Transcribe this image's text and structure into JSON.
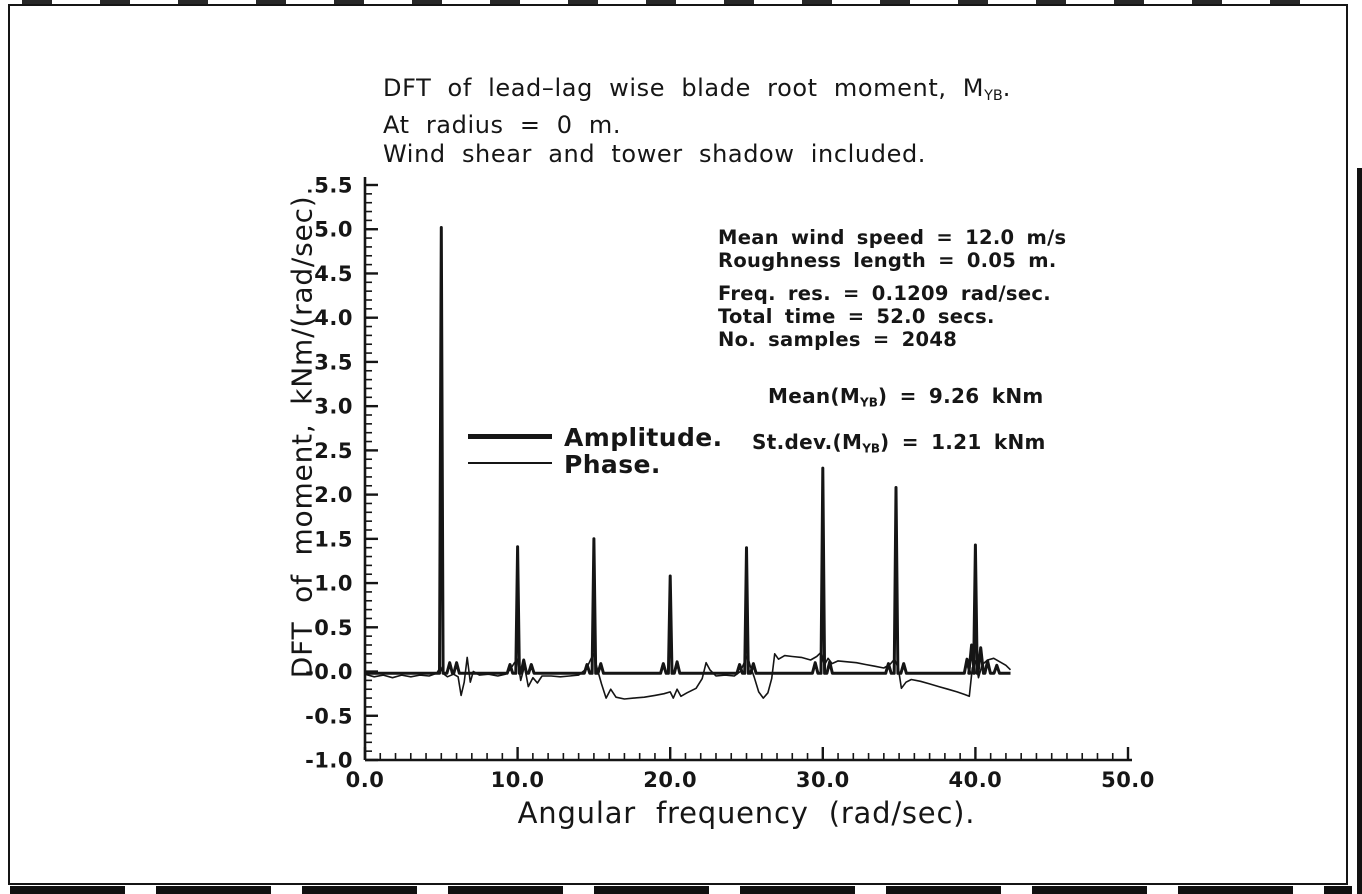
{
  "chart_data": {
    "type": "line",
    "title": {
      "line1_prefix": "DFT of lead–lag wise blade root moment, M",
      "line1_sub": "YB",
      "line1_suffix": ".",
      "line2": "At radius = 0 m.",
      "line3": "Wind shear and tower shadow included."
    },
    "xlabel": "Angular frequency (rad/sec).",
    "ylabel": "DFT of moment, kNm/(rad/sec).",
    "xlim": [
      0,
      50
    ],
    "ylim": [
      -1.0,
      5.5
    ],
    "x_major_ticks": [
      0,
      10,
      20,
      30,
      40,
      50
    ],
    "x_tick_labels": [
      "0.0",
      "10.0",
      "20.0",
      "30.0",
      "40.0",
      "50.0"
    ],
    "x_minor_step": 1.0,
    "y_major_ticks": [
      5.5,
      5.0,
      4.5,
      4.0,
      3.5,
      3.0,
      2.5,
      2.0,
      1.5,
      1.0,
      0.5,
      0.0,
      -0.5,
      -1.0
    ],
    "y_tick_labels": [
      "5.5",
      "5.0",
      "4.5",
      "4.0",
      "3.5",
      "3.0",
      "2.5",
      "2.0",
      "1.5",
      "1.0",
      "0.5",
      "-0.0",
      "-0.5",
      "-1.0"
    ],
    "y_minor_step": 0.1,
    "grid": false,
    "ink_color": "#151515",
    "legend": {
      "position": "inside-left",
      "amplitude_label": "Amplitude.",
      "phase_label": "Phase."
    },
    "info": {
      "line1": "Mean wind speed = 12.0 m/s",
      "line2": "Roughness length = 0.05 m.",
      "line3": "Freq. res. = 0.1209 rad/sec.",
      "line4": "Total time = 52.0 secs.",
      "line5": "No. samples = 2048"
    },
    "stats": {
      "mean_prefix": "Mean(M",
      "sub": "YB",
      "mean_suffix": ") = 9.26 kNm",
      "stdev_prefix": "St.dev.(M",
      "stdev_suffix": ") = 1.21 kNm"
    },
    "series": [
      {
        "name": "Amplitude.",
        "style": "thick",
        "baseline": -0.02,
        "x_end": 42.3,
        "peaks": [
          [
            5.0,
            5.02
          ],
          [
            10.0,
            1.41
          ],
          [
            15.0,
            1.5
          ],
          [
            20.0,
            1.08
          ],
          [
            25.0,
            1.4
          ],
          [
            30.0,
            2.3
          ],
          [
            34.8,
            2.08
          ],
          [
            40.0,
            1.43
          ]
        ],
        "minor_bumps": [
          [
            5.55,
            0.1
          ],
          [
            6.0,
            0.1
          ],
          [
            9.5,
            0.08
          ],
          [
            10.4,
            0.13
          ],
          [
            10.9,
            0.08
          ],
          [
            14.55,
            0.08
          ],
          [
            15.45,
            0.09
          ],
          [
            19.55,
            0.09
          ],
          [
            20.45,
            0.11
          ],
          [
            24.55,
            0.08
          ],
          [
            25.45,
            0.09
          ],
          [
            29.5,
            0.1
          ],
          [
            30.45,
            0.11
          ],
          [
            34.3,
            0.09
          ],
          [
            35.3,
            0.09
          ],
          [
            39.45,
            0.14
          ],
          [
            39.75,
            0.3
          ],
          [
            40.35,
            0.27
          ],
          [
            40.8,
            0.12
          ],
          [
            41.4,
            0.07
          ]
        ]
      },
      {
        "name": "Phase.",
        "style": "thin",
        "points": [
          [
            0,
            -0.03
          ],
          [
            0.6,
            -0.06
          ],
          [
            1.2,
            -0.04
          ],
          [
            1.8,
            -0.07
          ],
          [
            2.4,
            -0.04
          ],
          [
            3,
            -0.06
          ],
          [
            3.6,
            -0.04
          ],
          [
            4.2,
            -0.05
          ],
          [
            4.7,
            -0.02
          ],
          [
            4.95,
            0.05
          ],
          [
            5.1,
            -0.02
          ],
          [
            5.4,
            -0.06
          ],
          [
            5.8,
            -0.03
          ],
          [
            6.1,
            -0.06
          ],
          [
            6.3,
            -0.27
          ],
          [
            6.5,
            -0.12
          ],
          [
            6.7,
            0.16
          ],
          [
            6.9,
            -0.12
          ],
          [
            7.1,
            0.0
          ],
          [
            7.5,
            -0.04
          ],
          [
            8.1,
            -0.03
          ],
          [
            8.7,
            -0.05
          ],
          [
            9.2,
            -0.03
          ],
          [
            9.5,
            0.02
          ],
          [
            9.8,
            0.1
          ],
          [
            10.0,
            0.14
          ],
          [
            10.2,
            -0.1
          ],
          [
            10.45,
            0.06
          ],
          [
            10.7,
            -0.17
          ],
          [
            11.0,
            -0.07
          ],
          [
            11.3,
            -0.13
          ],
          [
            11.6,
            -0.05
          ],
          [
            12.2,
            -0.05
          ],
          [
            12.8,
            -0.06
          ],
          [
            13.4,
            -0.05
          ],
          [
            14.0,
            -0.04
          ],
          [
            14.5,
            0.03
          ],
          [
            14.8,
            0.14
          ],
          [
            15.0,
            0.2
          ],
          [
            15.2,
            0.04
          ],
          [
            15.5,
            -0.14
          ],
          [
            15.8,
            -0.3
          ],
          [
            16.1,
            -0.2
          ],
          [
            16.45,
            -0.29
          ],
          [
            17,
            -0.31
          ],
          [
            17.6,
            -0.3
          ],
          [
            18.3,
            -0.29
          ],
          [
            19,
            -0.27
          ],
          [
            19.6,
            -0.25
          ],
          [
            20,
            -0.23
          ],
          [
            20.2,
            -0.3
          ],
          [
            20.45,
            -0.2
          ],
          [
            20.7,
            -0.28
          ],
          [
            21.1,
            -0.24
          ],
          [
            21.7,
            -0.19
          ],
          [
            22.1,
            -0.08
          ],
          [
            22.35,
            0.1
          ],
          [
            22.6,
            0.02
          ],
          [
            23,
            -0.05
          ],
          [
            23.6,
            -0.04
          ],
          [
            24.2,
            -0.05
          ],
          [
            24.6,
            0.0
          ],
          [
            24.85,
            0.1
          ],
          [
            25.05,
            0.18
          ],
          [
            25.25,
            0.06
          ],
          [
            25.5,
            -0.06
          ],
          [
            25.8,
            -0.23
          ],
          [
            26.1,
            -0.3
          ],
          [
            26.4,
            -0.24
          ],
          [
            26.65,
            -0.08
          ],
          [
            26.85,
            0.2
          ],
          [
            27.1,
            0.14
          ],
          [
            27.5,
            0.18
          ],
          [
            28,
            0.17
          ],
          [
            28.6,
            0.16
          ],
          [
            29.2,
            0.13
          ],
          [
            29.6,
            0.17
          ],
          [
            29.9,
            0.22
          ],
          [
            30.1,
            0.07
          ],
          [
            30.35,
            0.15
          ],
          [
            30.6,
            0.09
          ],
          [
            31,
            0.12
          ],
          [
            31.6,
            0.11
          ],
          [
            32.2,
            0.1
          ],
          [
            32.8,
            0.08
          ],
          [
            33.4,
            0.06
          ],
          [
            34,
            0.04
          ],
          [
            34.4,
            0.08
          ],
          [
            34.7,
            0.14
          ],
          [
            34.95,
            0.04
          ],
          [
            35.15,
            -0.19
          ],
          [
            35.45,
            -0.12
          ],
          [
            35.8,
            -0.09
          ],
          [
            36.4,
            -0.11
          ],
          [
            37,
            -0.14
          ],
          [
            37.6,
            -0.17
          ],
          [
            38.2,
            -0.2
          ],
          [
            38.8,
            -0.23
          ],
          [
            39.3,
            -0.26
          ],
          [
            39.6,
            -0.28
          ],
          [
            39.8,
            0.04
          ],
          [
            40.0,
            0.12
          ],
          [
            40.2,
            -0.07
          ],
          [
            40.45,
            0.08
          ],
          [
            40.8,
            0.13
          ],
          [
            41.2,
            0.15
          ],
          [
            41.6,
            0.11
          ],
          [
            42.0,
            0.07
          ],
          [
            42.3,
            0.02
          ]
        ]
      }
    ]
  }
}
